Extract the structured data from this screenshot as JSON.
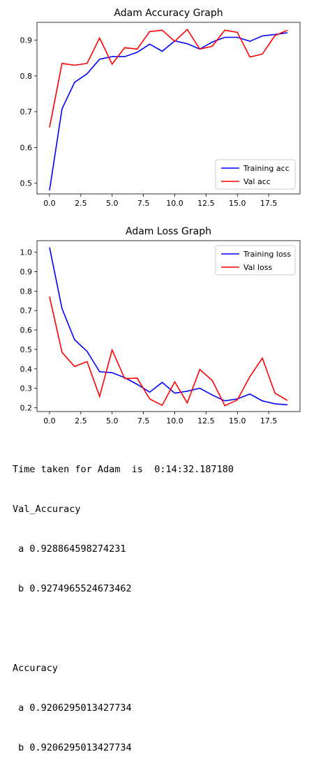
{
  "chart_data": [
    {
      "type": "line",
      "title": "Adam Accuracy Graph",
      "xlabel": "",
      "ylabel": "",
      "x": [
        0,
        1,
        2,
        3,
        4,
        5,
        6,
        7,
        8,
        9,
        10,
        11,
        12,
        13,
        14,
        15,
        16,
        17,
        18,
        19
      ],
      "xlim": [
        -1,
        20
      ],
      "ylim": [
        0.47,
        0.95
      ],
      "xticks": [
        "0.0",
        "2.5",
        "5.0",
        "7.5",
        "10.0",
        "12.5",
        "15.0",
        "17.5"
      ],
      "yticks": [
        "0.5",
        "0.6",
        "0.7",
        "0.8",
        "0.9"
      ],
      "legend_position": "lower-right",
      "grid": false,
      "series": [
        {
          "name": "Training acc",
          "color": "#0000ff",
          "values": [
            0.48,
            0.708,
            0.782,
            0.806,
            0.847,
            0.854,
            0.854,
            0.866,
            0.889,
            0.869,
            0.898,
            0.89,
            0.875,
            0.895,
            0.908,
            0.908,
            0.897,
            0.912,
            0.916,
            0.921
          ]
        },
        {
          "name": "Val acc",
          "color": "#ff0000",
          "values": [
            0.656,
            0.835,
            0.83,
            0.835,
            0.906,
            0.833,
            0.879,
            0.875,
            0.924,
            0.928,
            0.897,
            0.93,
            0.875,
            0.883,
            0.928,
            0.922,
            0.853,
            0.861,
            0.913,
            0.928
          ]
        }
      ]
    },
    {
      "type": "line",
      "title": "Adam Loss Graph",
      "xlabel": "",
      "ylabel": "",
      "x": [
        0,
        1,
        2,
        3,
        4,
        5,
        6,
        7,
        8,
        9,
        10,
        11,
        12,
        13,
        14,
        15,
        16,
        17,
        18,
        19
      ],
      "xlim": [
        -1,
        20
      ],
      "ylim": [
        0.18,
        1.06
      ],
      "xticks": [
        "0.0",
        "2.5",
        "5.0",
        "7.5",
        "10.0",
        "12.5",
        "15.0",
        "17.5"
      ],
      "yticks": [
        "0.2",
        "0.3",
        "0.4",
        "0.5",
        "0.6",
        "0.7",
        "0.8",
        "0.9",
        "1.0"
      ],
      "legend_position": "upper-right",
      "grid": false,
      "series": [
        {
          "name": "Training loss",
          "color": "#0000ff",
          "values": [
            1.025,
            0.71,
            0.55,
            0.49,
            0.385,
            0.38,
            0.355,
            0.32,
            0.28,
            0.33,
            0.275,
            0.285,
            0.3,
            0.265,
            0.235,
            0.245,
            0.27,
            0.235,
            0.22,
            0.215
          ]
        },
        {
          "name": "Val loss",
          "color": "#ff0000",
          "values": [
            0.772,
            0.485,
            0.412,
            0.437,
            0.258,
            0.497,
            0.35,
            0.352,
            0.245,
            0.212,
            0.333,
            0.225,
            0.397,
            0.34,
            0.21,
            0.24,
            0.36,
            0.455,
            0.275,
            0.237
          ]
        }
      ]
    }
  ],
  "output": {
    "time_line": "Time taken for Adam  is  0:14:32.187180",
    "val_header": "Val_Accuracy",
    "val_a": " a 0.928864598274231",
    "val_b": " b 0.9274965524673462",
    "acc_header": "Accuracy",
    "acc_a": " a 0.9206295013427734",
    "acc_b": " b 0.9206295013427734"
  }
}
